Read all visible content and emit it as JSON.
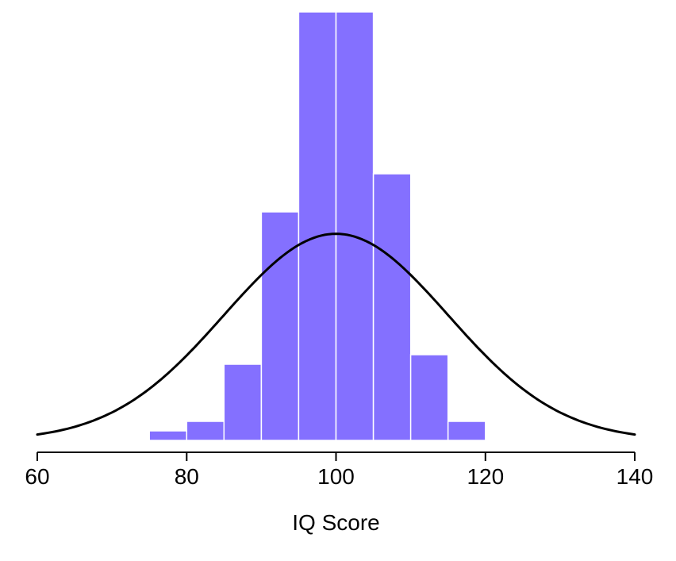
{
  "chart_data": {
    "type": "histogram",
    "title": "",
    "xlabel": "IQ Score",
    "ylabel": "",
    "x_range": [
      60,
      140
    ],
    "x_ticks": [
      60,
      80,
      100,
      120,
      140
    ],
    "bin_edges": [
      75,
      80,
      85,
      90,
      95,
      100,
      105,
      110,
      115,
      120
    ],
    "bin_width": 5,
    "counts": [
      1,
      2,
      8,
      24,
      45,
      45,
      28,
      9,
      2
    ],
    "bar_color": "#8470FF",
    "bar_border_color": "#FFFFFF",
    "axis_color": "#000000",
    "grid": "off",
    "legend": "none",
    "curve": {
      "type": "normal",
      "mean": 100,
      "sd": 15,
      "peak_height_counts": 21.7,
      "color": "#000000"
    }
  }
}
